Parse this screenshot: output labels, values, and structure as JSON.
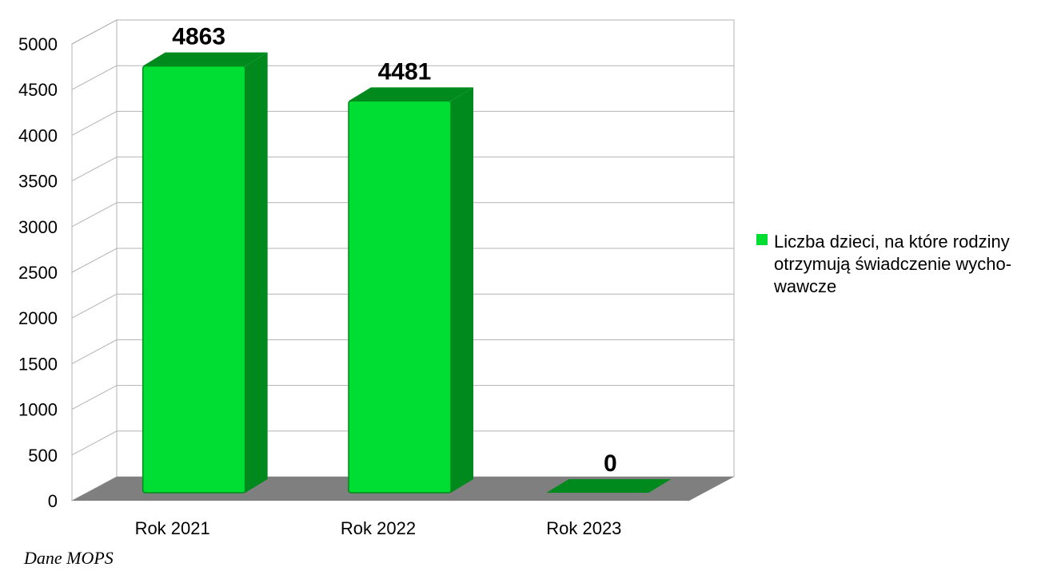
{
  "chart_data": {
    "type": "bar",
    "categories": [
      "Rok 2021",
      "Rok 2022",
      "Rok 2023"
    ],
    "series": [
      {
        "name": "Liczba dzieci, na które rodziny otrzymują świadczenie wychowawcze",
        "values": [
          4863,
          4481,
          0
        ],
        "color": "#00dd33",
        "side_color": "#008a1e"
      }
    ],
    "data_labels": [
      "4863",
      "4481",
      "0"
    ],
    "y_ticks": [
      "0",
      "500",
      "1000",
      "1500",
      "2000",
      "2500",
      "3000",
      "3500",
      "4000",
      "4500",
      "5000"
    ],
    "ylim": [
      0,
      5000
    ],
    "grid": true,
    "legend_position": "right",
    "style": "3d",
    "floor_color": "#7f7f7f",
    "grid_color": "#b3b3b3"
  },
  "legend": {
    "lines": [
      "Liczba dzieci, na które rodziny",
      "otrzymują świadczenie wycho-",
      "wawcze"
    ]
  },
  "source_note": "Dane MOPS"
}
